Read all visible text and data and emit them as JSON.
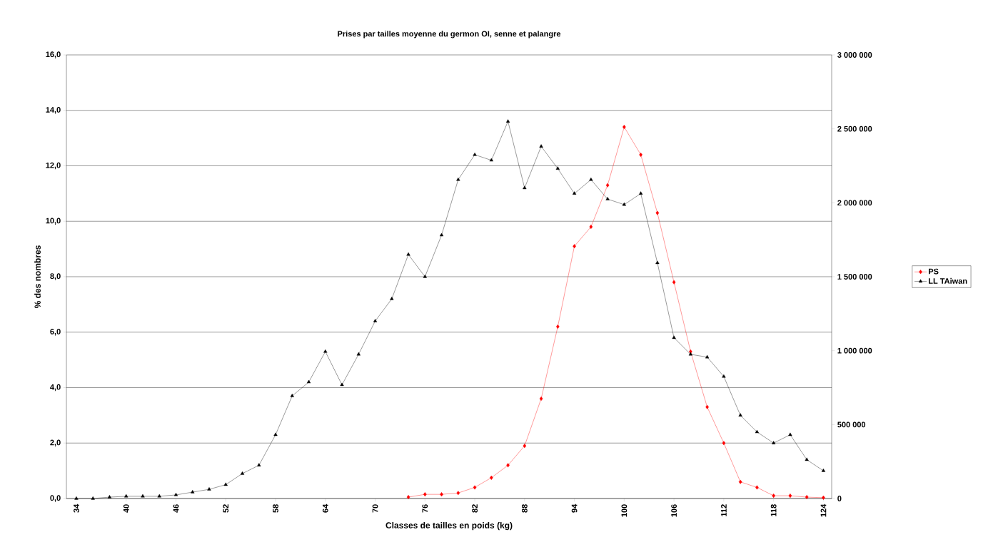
{
  "chart_data": {
    "type": "line",
    "title": "Prises par tailles moyenne du germon OI, senne et palangre",
    "xlabel": "Classes de tailles en poids  (kg)",
    "ylabel": "% des nombres",
    "categories": [
      "34",
      null,
      null,
      "40",
      null,
      null,
      "46",
      null,
      null,
      "52",
      null,
      null,
      "58",
      null,
      null,
      "64",
      null,
      null,
      "70",
      null,
      null,
      "76",
      null,
      null,
      "82",
      null,
      null,
      "88",
      null,
      null,
      "94",
      null,
      null,
      "100",
      null,
      null,
      "106",
      null,
      null,
      "112",
      null,
      null,
      "118",
      null,
      null,
      "124"
    ],
    "series": [
      {
        "name": "PS",
        "color": "#ff0000",
        "marker": "diamond",
        "values": [
          null,
          null,
          null,
          null,
          null,
          null,
          null,
          null,
          null,
          null,
          null,
          null,
          null,
          null,
          null,
          null,
          null,
          null,
          null,
          null,
          0.05,
          0.15,
          0.15,
          0.2,
          0.4,
          0.75,
          1.2,
          1.9,
          3.6,
          6.2,
          9.1,
          9.8,
          11.3,
          13.4,
          12.4,
          10.3,
          7.8,
          5.3,
          3.3,
          2.0,
          0.6,
          0.4,
          0.1,
          0.1,
          0.05,
          0.03
        ]
      },
      {
        "name": "LL TAiwan",
        "color": "#000000",
        "marker": "triangle",
        "values": [
          0.0,
          0.0,
          0.05,
          0.08,
          0.08,
          0.08,
          0.13,
          0.23,
          0.33,
          0.5,
          0.9,
          1.2,
          2.3,
          3.7,
          4.2,
          5.3,
          4.1,
          5.2,
          6.4,
          7.2,
          8.8,
          8.0,
          9.5,
          11.5,
          12.4,
          12.2,
          13.6,
          11.2,
          12.7,
          11.9,
          11.0,
          11.5,
          10.8,
          10.6,
          11.0,
          8.5,
          5.8,
          5.2,
          5.1,
          4.4,
          3.0,
          2.4,
          2.0,
          2.3,
          1.4,
          1.0
        ]
      }
    ],
    "ylim": [
      0,
      16
    ],
    "yticks": [
      {
        "value": 0,
        "label": "0,0"
      },
      {
        "value": 2,
        "label": "2,0"
      },
      {
        "value": 4,
        "label": "4,0"
      },
      {
        "value": 6,
        "label": "6,0"
      },
      {
        "value": 8,
        "label": "8,0"
      },
      {
        "value": 10,
        "label": "10,0"
      },
      {
        "value": 12,
        "label": "12,0"
      },
      {
        "value": 14,
        "label": "14,0"
      },
      {
        "value": 16,
        "label": "16,0"
      }
    ],
    "y2lim": [
      0,
      3000000
    ],
    "y2ticks": [
      0,
      {
        "value": 500000,
        "label": "500 000"
      },
      {
        "value": 1000000,
        "label": "1 000 000"
      },
      {
        "value": 1500000,
        "label": "1 500 000"
      },
      {
        "value": 2000000,
        "label": "2 000 000"
      },
      {
        "value": 2500000,
        "label": "2 500 000"
      },
      {
        "value": 3000000,
        "label": "3 000 000"
      }
    ],
    "grid": "y",
    "legend": "right",
    "line_style": "solid"
  }
}
